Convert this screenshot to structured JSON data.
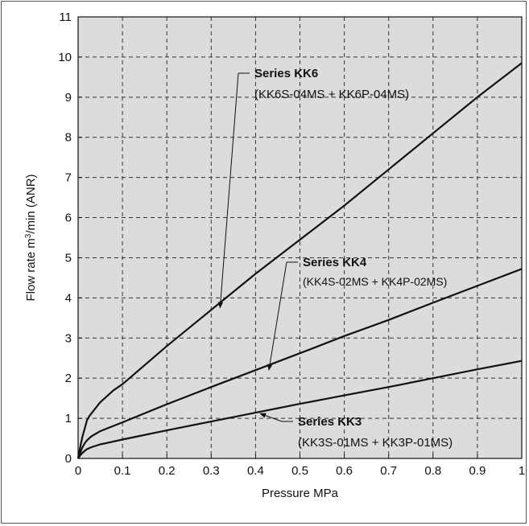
{
  "chart_data": {
    "type": "line",
    "xlabel": "Pressure MPa",
    "ylabel_prefix": "Flow rate m",
    "ylabel_sup": "3",
    "ylabel_suffix": "/min (ANR)",
    "xlim": [
      0,
      1
    ],
    "ylim": [
      0,
      11
    ],
    "xticks": [
      "0",
      "0.1",
      "0.2",
      "0.3",
      "0.4",
      "0.5",
      "0.6",
      "0.7",
      "0.8",
      "0.9",
      "1"
    ],
    "yticks": [
      "0",
      "1",
      "2",
      "3",
      "4",
      "5",
      "6",
      "7",
      "8",
      "9",
      "10",
      "11"
    ],
    "grid": true,
    "plot_background": "#dcdcdc",
    "series": [
      {
        "name": "Series KK6",
        "models": "(KK6S-04MS + KK6P-04MS)",
        "x": [
          0,
          0.005,
          0.01,
          0.015,
          0.02,
          0.025,
          0.03,
          0.05,
          0.08,
          0.1,
          0.2,
          0.3,
          0.4,
          0.5,
          0.6,
          0.7,
          0.8,
          0.9,
          1.0
        ],
        "y": [
          0,
          0.3,
          0.55,
          0.75,
          0.95,
          1.05,
          1.12,
          1.4,
          1.7,
          1.85,
          2.8,
          3.7,
          4.6,
          5.45,
          6.3,
          7.2,
          8.1,
          9.0,
          9.85
        ]
      },
      {
        "name": "Series KK4",
        "models": "(KK4S-02MS + KK4P-02MS)",
        "x": [
          0,
          0.005,
          0.01,
          0.015,
          0.02,
          0.03,
          0.05,
          0.1,
          0.2,
          0.3,
          0.4,
          0.5,
          0.6,
          0.7,
          0.8,
          0.9,
          1.0
        ],
        "y": [
          0,
          0.15,
          0.28,
          0.38,
          0.45,
          0.55,
          0.68,
          0.9,
          1.35,
          1.78,
          2.2,
          2.62,
          3.05,
          3.45,
          3.88,
          4.3,
          4.72
        ]
      },
      {
        "name": "Series KK3",
        "models": "(KK3S-01MS + KK3P-01MS)",
        "x": [
          0,
          0.005,
          0.01,
          0.015,
          0.02,
          0.03,
          0.05,
          0.1,
          0.2,
          0.3,
          0.4,
          0.5,
          0.6,
          0.7,
          0.8,
          0.9,
          1.0
        ],
        "y": [
          0,
          0.08,
          0.14,
          0.19,
          0.23,
          0.28,
          0.35,
          0.47,
          0.7,
          0.92,
          1.14,
          1.36,
          1.57,
          1.78,
          2.0,
          2.22,
          2.43
        ]
      }
    ],
    "annotations": [
      {
        "series": "Series KK6",
        "title": "Series KK6",
        "subtitle": "(KK6S-04MS + KK6P-04MS)",
        "points_to": {
          "x": 0.32,
          "y": 3.75
        }
      },
      {
        "series": "Series KK4",
        "title": "Series KK4",
        "subtitle": "(KK4S-02MS + KK4P-02MS)",
        "points_to": {
          "x": 0.43,
          "y": 2.2
        }
      },
      {
        "series": "Series KK3",
        "title": "Series KK3",
        "subtitle": "(KK3S-01MS + KK3P-01MS)",
        "points_to": {
          "x": 0.41,
          "y": 1.12
        }
      }
    ]
  }
}
